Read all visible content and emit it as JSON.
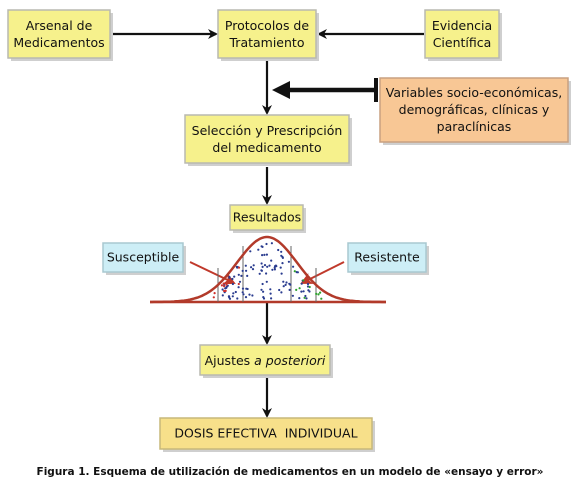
{
  "nodes": {
    "arsenal": [
      "Arsenal de",
      "Medicamentos"
    ],
    "protocolos": [
      "Protocolos de",
      "Tratamiento"
    ],
    "evidencia": [
      "Evidencia",
      "Científica"
    ],
    "variables": [
      "Variables socio-económicas,",
      "demográficas, clínicas y",
      "paraclínicas"
    ],
    "seleccion": [
      "Selección y Prescripción",
      "del medicamento"
    ],
    "resultados": "Resultados",
    "susceptible": "Susceptible",
    "resistente": "Resistente",
    "ajustes": {
      "plain": "Ajustes",
      "italic": "a posteriori"
    },
    "dosis": "DOSIS EFECTIVA  INDIVIDUAL"
  },
  "caption": "Figura 1. Esquema de utilización de medicamentos en un modelo de «ensayo y error»"
}
